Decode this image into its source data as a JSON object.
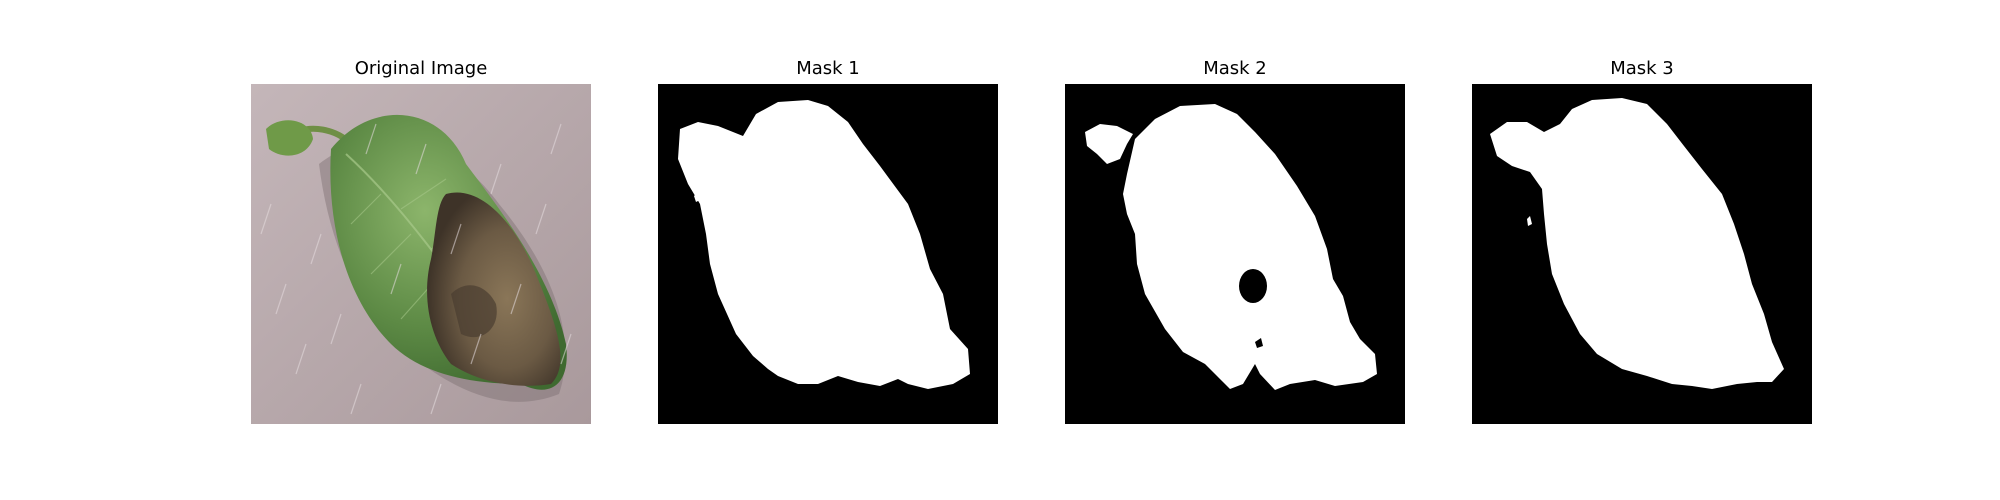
{
  "figure": {
    "panels": [
      {
        "title": "Original Image",
        "kind": "photo"
      },
      {
        "title": "Mask 1",
        "kind": "mask"
      },
      {
        "title": "Mask 2",
        "kind": "mask"
      },
      {
        "title": "Mask 3",
        "kind": "mask"
      }
    ]
  },
  "colors": {
    "background": "#ffffff",
    "mask_background": "#000000",
    "mask_foreground": "#ffffff",
    "photo_backdrop": "#b7a8ab",
    "leaf_green": "#5d8a45",
    "leaf_light_green": "#8cb56b",
    "blight_brown": "#6b5a44",
    "blight_dark": "#3e3328"
  }
}
